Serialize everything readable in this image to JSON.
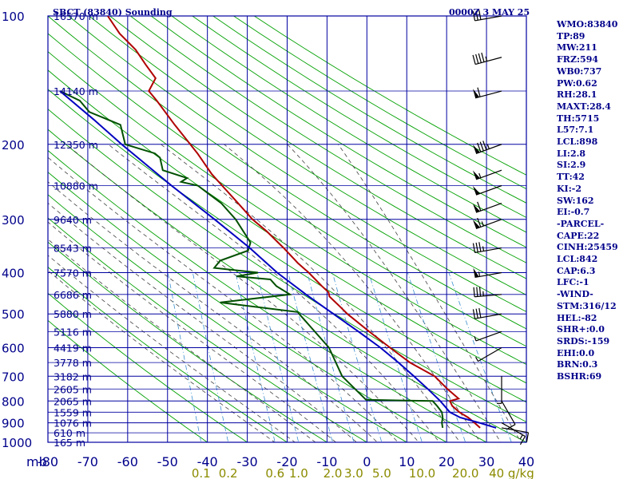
{
  "header": {
    "title": "SBCT (83840) Sounding",
    "time": "0000Z  3 MAY 25"
  },
  "stats": [
    "WMO:83840",
    "TP:89",
    "MW:211",
    "FRZ:594",
    "WB0:737",
    "PW:0.62",
    "RH:28.1",
    "MAXT:28.4",
    "TH:5715",
    "L57:7.1",
    "LCL:898",
    "LI:2.8",
    "SI:2.9",
    "TT:42",
    "KI:-2",
    "SW:162",
    "EI:-0.7",
    "-PARCEL-",
    "CAPE:22",
    "CINH:25459",
    "LCL:842",
    "CAP:6.3",
    "LFC:-1",
    "-WIND-",
    "STM:316/12",
    "HEL:-82",
    "SHR+:0.0",
    "SRDS:-159",
    "EHI:0.0",
    "BRN:0.3",
    "BSHR:69"
  ],
  "colors": {
    "grid": "#0000a0",
    "temperature": "#b00000",
    "dewpoint": "#005000",
    "parcel": "#0000c0",
    "dry_adiabat": "#00a000",
    "moist_adiabat": "#404040",
    "mixing_ratio": "#3a8fd0",
    "axis_text": "#00008b",
    "mixing_ratio_text": "#8b8b00"
  },
  "chart_data": {
    "type": "line",
    "title": "SBCT (83840) Sounding",
    "x_unit_label": "mb",
    "y_unit_label": "g/kg",
    "xlim": [
      -80,
      40
    ],
    "ylim": [
      1000,
      100
    ],
    "y_scale": "log",
    "grid": true,
    "temperature_ticks": [
      "-80",
      "-70",
      "-60",
      "-50",
      "-40",
      "-30",
      "-20",
      "-10",
      "0",
      "10",
      "20",
      "30",
      "40"
    ],
    "pressure_ticks": [
      "100",
      "200",
      "300",
      "400",
      "500",
      "600",
      "700",
      "800",
      "900",
      "1000"
    ],
    "height_labels": [
      {
        "p": 100,
        "label": "16570 m"
      },
      {
        "p": 150,
        "label": "14140 m"
      },
      {
        "p": 200,
        "label": "12350 m"
      },
      {
        "p": 250,
        "label": "10880 m"
      },
      {
        "p": 300,
        "label": "9640 m"
      },
      {
        "p": 350,
        "label": "8543 m"
      },
      {
        "p": 400,
        "label": "7570 m"
      },
      {
        "p": 450,
        "label": "6686 m"
      },
      {
        "p": 500,
        "label": "5880 m"
      },
      {
        "p": 550,
        "label": "5116 m"
      },
      {
        "p": 600,
        "label": "4419 m"
      },
      {
        "p": 650,
        "label": "3778 m"
      },
      {
        "p": 700,
        "label": "3182 m"
      },
      {
        "p": 750,
        "label": "2605 m"
      },
      {
        "p": 800,
        "label": "2065 m"
      },
      {
        "p": 850,
        "label": "1559 m"
      },
      {
        "p": 900,
        "label": "1076 m"
      },
      {
        "p": 950,
        "label": "610 m"
      },
      {
        "p": 1000,
        "label": "165 m"
      }
    ],
    "mixing_ratio_labels": [
      "0.1",
      "0.2",
      "0.6",
      "1.0",
      "2.0",
      "3.0",
      "5.0",
      "10.0",
      "20.0",
      "40 g/kg"
    ],
    "mixing_ratio_values": [
      0.1,
      0.2,
      0.6,
      1.0,
      2.0,
      3.0,
      5.0,
      10.0,
      20.0,
      40.0
    ],
    "series": [
      {
        "name": "temperature",
        "points": [
          {
            "p": 925,
            "t": 28.4
          },
          {
            "p": 900,
            "t": 27.0
          },
          {
            "p": 875,
            "t": 25.4
          },
          {
            "p": 850,
            "t": 23.2
          },
          {
            "p": 822,
            "t": 21.4
          },
          {
            "p": 800,
            "t": 20.8
          },
          {
            "p": 790,
            "t": 23.0
          },
          {
            "p": 750,
            "t": 20.2
          },
          {
            "p": 700,
            "t": 17.0
          },
          {
            "p": 650,
            "t": 10.8
          },
          {
            "p": 600,
            "t": 5.8
          },
          {
            "p": 550,
            "t": 0.6
          },
          {
            "p": 500,
            "t": -4.9
          },
          {
            "p": 480,
            "t": -6.8
          },
          {
            "p": 455,
            "t": -9.4
          },
          {
            "p": 445,
            "t": -9.6
          },
          {
            "p": 430,
            "t": -11.3
          },
          {
            "p": 400,
            "t": -14.6
          },
          {
            "p": 380,
            "t": -17.3
          },
          {
            "p": 350,
            "t": -20.9
          },
          {
            "p": 320,
            "t": -25.1
          },
          {
            "p": 300,
            "t": -28.7
          },
          {
            "p": 275,
            "t": -32.3
          },
          {
            "p": 250,
            "t": -36.3
          },
          {
            "p": 235,
            "t": -38.9
          },
          {
            "p": 210,
            "t": -42.5
          },
          {
            "p": 200,
            "t": -44.3
          },
          {
            "p": 180,
            "t": -48.2
          },
          {
            "p": 158,
            "t": -52.7
          },
          {
            "p": 150,
            "t": -54.7
          },
          {
            "p": 140,
            "t": -53.0
          },
          {
            "p": 130,
            "t": -55.5
          },
          {
            "p": 120,
            "t": -58.0
          },
          {
            "p": 110,
            "t": -62.0
          },
          {
            "p": 100,
            "t": -65.0
          }
        ]
      },
      {
        "name": "dewpoint",
        "points": [
          {
            "p": 925,
            "t": 19.0
          },
          {
            "p": 900,
            "t": 18.8
          },
          {
            "p": 875,
            "t": 19.0
          },
          {
            "p": 850,
            "t": 18.8
          },
          {
            "p": 822,
            "t": 17.6
          },
          {
            "p": 800,
            "t": 16.5
          },
          {
            "p": 795,
            "t": -0.2
          },
          {
            "p": 700,
            "t": -6.2
          },
          {
            "p": 600,
            "t": -9.5
          },
          {
            "p": 500,
            "t": -17.0
          },
          {
            "p": 495,
            "t": -17.3
          },
          {
            "p": 470,
            "t": -36.8
          },
          {
            "p": 450,
            "t": -19.3
          },
          {
            "p": 430,
            "t": -22.7
          },
          {
            "p": 415,
            "t": -24.2
          },
          {
            "p": 408,
            "t": -32.7
          },
          {
            "p": 400,
            "t": -27.3
          },
          {
            "p": 390,
            "t": -38.3
          },
          {
            "p": 375,
            "t": -36.8
          },
          {
            "p": 355,
            "t": -29.8
          },
          {
            "p": 340,
            "t": -29.2
          },
          {
            "p": 300,
            "t": -32.9
          },
          {
            "p": 275,
            "t": -36.5
          },
          {
            "p": 260,
            "t": -40.0
          },
          {
            "p": 250,
            "t": -42.4
          },
          {
            "p": 245,
            "t": -46.6
          },
          {
            "p": 240,
            "t": -45.1
          },
          {
            "p": 230,
            "t": -51.2
          },
          {
            "p": 215,
            "t": -51.9
          },
          {
            "p": 210,
            "t": -53.2
          },
          {
            "p": 200,
            "t": -60.6
          },
          {
            "p": 180,
            "t": -61.8
          },
          {
            "p": 168,
            "t": -69.6
          },
          {
            "p": 158,
            "t": -72.0
          },
          {
            "p": 150,
            "t": -77.0
          }
        ]
      },
      {
        "name": "parcel",
        "points": [
          {
            "p": 925,
            "t": 32.4
          },
          {
            "p": 900,
            "t": 28.2
          },
          {
            "p": 875,
            "t": 23.4
          },
          {
            "p": 850,
            "t": 20.8
          },
          {
            "p": 800,
            "t": 18.4
          },
          {
            "p": 750,
            "t": 15.3
          },
          {
            "p": 700,
            "t": 11.8
          },
          {
            "p": 650,
            "t": 7.9
          },
          {
            "p": 600,
            "t": 3.4
          },
          {
            "p": 550,
            "t": -2.1
          },
          {
            "p": 500,
            "t": -8.4
          },
          {
            "p": 450,
            "t": -15.3
          },
          {
            "p": 400,
            "t": -22.5
          },
          {
            "p": 350,
            "t": -29.4
          },
          {
            "p": 300,
            "t": -38.2
          },
          {
            "p": 250,
            "t": -49.0
          },
          {
            "p": 200,
            "t": -61.5
          },
          {
            "p": 175,
            "t": -68.5
          },
          {
            "p": 150,
            "t": -77.0
          }
        ]
      }
    ],
    "wind_barbs": [
      {
        "p": 100,
        "dir": 260,
        "spd": 30
      },
      {
        "p": 125,
        "dir": 255,
        "spd": 45
      },
      {
        "p": 150,
        "dir": 255,
        "spd": 60
      },
      {
        "p": 200,
        "dir": 250,
        "spd": 85
      },
      {
        "p": 230,
        "dir": 250,
        "spd": 55
      },
      {
        "p": 250,
        "dir": 250,
        "spd": 50
      },
      {
        "p": 275,
        "dir": 250,
        "spd": 60
      },
      {
        "p": 300,
        "dir": 250,
        "spd": 65
      },
      {
        "p": 350,
        "dir": 260,
        "spd": 35
      },
      {
        "p": 400,
        "dir": 260,
        "spd": 55
      },
      {
        "p": 450,
        "dir": 265,
        "spd": 35
      },
      {
        "p": 500,
        "dir": 260,
        "spd": 30
      },
      {
        "p": 550,
        "dir": 250,
        "spd": 5
      },
      {
        "p": 600,
        "dir": 240,
        "spd": 5
      },
      {
        "p": 700,
        "dir": 180,
        "spd": 5
      },
      {
        "p": 800,
        "dir": 150,
        "spd": 10
      },
      {
        "p": 900,
        "dir": 120,
        "spd": 15
      },
      {
        "p": 925,
        "dir": 100,
        "spd": 10
      }
    ]
  }
}
